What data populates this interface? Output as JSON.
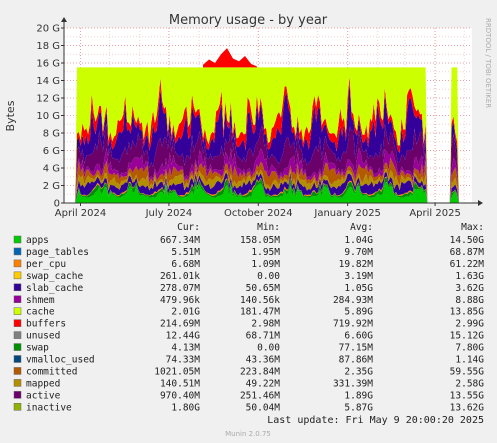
{
  "chart_data": {
    "type": "area",
    "title": "Memory usage - by year",
    "ylabel": "Bytes",
    "ylim": [
      0,
      20
    ],
    "y_unit": "G",
    "y_ticks": [
      {
        "v": 0,
        "label": "0"
      },
      {
        "v": 2,
        "label": "2 G"
      },
      {
        "v": 4,
        "label": "4 G"
      },
      {
        "v": 6,
        "label": "6 G"
      },
      {
        "v": 8,
        "label": "8 G"
      },
      {
        "v": 10,
        "label": "10 G"
      },
      {
        "v": 12,
        "label": "12 G"
      },
      {
        "v": 14,
        "label": "14 G"
      },
      {
        "v": 16,
        "label": "16 G"
      },
      {
        "v": 18,
        "label": "18 G"
      },
      {
        "v": 20,
        "label": "20 G"
      }
    ],
    "x_range": [
      "2024-03-15",
      "2025-05-09"
    ],
    "x_ticks": [
      {
        "date": "2024-04-01",
        "label": "April 2024"
      },
      {
        "date": "2024-07-01",
        "label": "July 2024"
      },
      {
        "date": "2024-10-01",
        "label": "October 2024"
      },
      {
        "date": "2025-01-01",
        "label": "January 2025"
      },
      {
        "date": "2025-04-01",
        "label": "April 2025"
      }
    ],
    "grid": true,
    "side_text": "RRDTOOL / TOBI OETIKER",
    "columns": [
      "Cur:",
      "Min:",
      "Avg:",
      "Max:"
    ],
    "series": [
      {
        "name": "apps",
        "color": "#00cc00",
        "cur": "667.34M",
        "min": "158.05M",
        "avg": "1.04G",
        "max": "14.50G"
      },
      {
        "name": "page_tables",
        "color": "#0066b3",
        "cur": "5.51M",
        "min": "1.95M",
        "avg": "9.70M",
        "max": "68.87M"
      },
      {
        "name": "per_cpu",
        "color": "#ff8000",
        "cur": "6.68M",
        "min": "1.09M",
        "avg": "19.82M",
        "max": "61.22M"
      },
      {
        "name": "swap_cache",
        "color": "#ffcc00",
        "cur": "261.01k",
        "min": "0.00",
        "avg": "3.19M",
        "max": "1.63G"
      },
      {
        "name": "slab_cache",
        "color": "#330099",
        "cur": "278.07M",
        "min": "50.65M",
        "avg": "1.05G",
        "max": "3.62G"
      },
      {
        "name": "shmem",
        "color": "#990099",
        "cur": "479.96k",
        "min": "140.56k",
        "avg": "284.93M",
        "max": "8.88G"
      },
      {
        "name": "cache",
        "color": "#ccff00",
        "cur": "2.01G",
        "min": "181.47M",
        "avg": "5.89G",
        "max": "13.85G"
      },
      {
        "name": "buffers",
        "color": "#ff0000",
        "cur": "214.69M",
        "min": "2.98M",
        "avg": "719.92M",
        "max": "2.99G"
      },
      {
        "name": "unused",
        "color": "#808080",
        "cur": "12.44G",
        "min": "68.71M",
        "avg": "6.60G",
        "max": "15.12G"
      },
      {
        "name": "swap",
        "color": "#008f00",
        "cur": "4.13M",
        "min": "0.00",
        "avg": "77.15M",
        "max": "7.80G"
      },
      {
        "name": "vmalloc_used",
        "color": "#00487d",
        "cur": "74.33M",
        "min": "43.36M",
        "avg": "87.86M",
        "max": "1.14G"
      },
      {
        "name": "committed",
        "color": "#b35a00",
        "cur": "1021.05M",
        "min": "223.84M",
        "avg": "2.35G",
        "max": "59.55G"
      },
      {
        "name": "mapped",
        "color": "#b38f00",
        "cur": "140.51M",
        "min": "49.22M",
        "avg": "331.39M",
        "max": "2.58G"
      },
      {
        "name": "active",
        "color": "#6b006b",
        "cur": "970.40M",
        "min": "251.46M",
        "avg": "1.89G",
        "max": "13.55G"
      },
      {
        "name": "inactive",
        "color": "#8fb300",
        "cur": "1.80G",
        "min": "50.04M",
        "avg": "5.87G",
        "max": "13.62G"
      }
    ],
    "last_update": "Last update: Fri May  9 20:00:20 2025",
    "footer": "Munin 2.0.75"
  }
}
